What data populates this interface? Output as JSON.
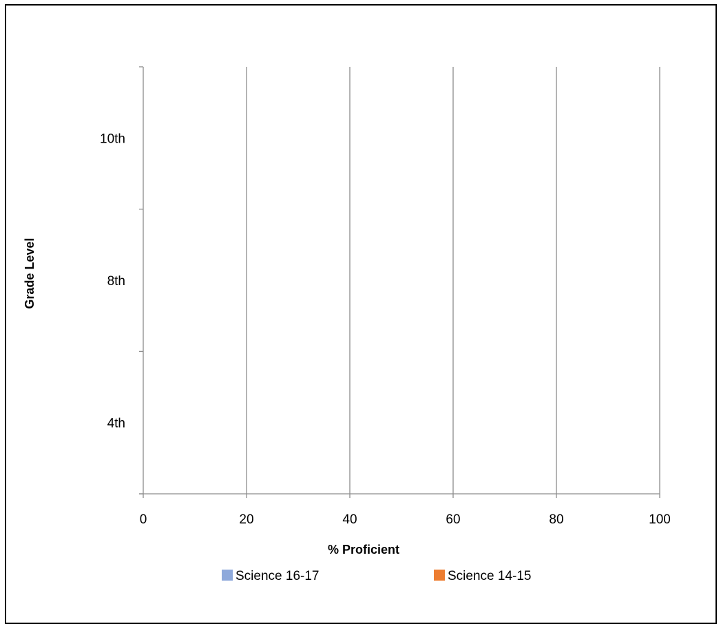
{
  "chart_data": {
    "type": "bar",
    "orientation": "horizontal",
    "title": "",
    "categories": [
      "4th",
      "8th",
      "10th"
    ],
    "series": [
      {
        "name": "Science 16-17",
        "color": "#8EA9DB",
        "values": [
          null,
          null,
          null
        ]
      },
      {
        "name": "Science 14-15",
        "color": "#ED7D31",
        "values": [
          null,
          null,
          null
        ]
      }
    ],
    "xlabel": "% Proficient",
    "ylabel": "Grade Level",
    "xlim": [
      0,
      100
    ],
    "xticks": [
      "0",
      "20",
      "40",
      "60",
      "80",
      "100"
    ],
    "grid": "vertical",
    "legend_position": "bottom"
  },
  "colors": {
    "gridline": "#8c8c8c",
    "axis": "#8c8c8c",
    "frame": "#000000"
  }
}
